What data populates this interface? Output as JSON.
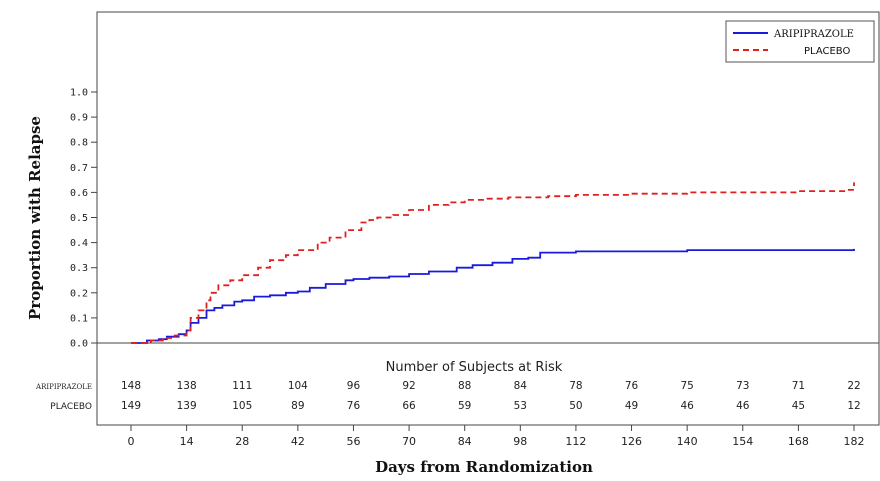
{
  "chart_data": {
    "type": "line",
    "title": "",
    "xlabel": "Days from Randomization",
    "ylabel": "Proportion with Relapse",
    "xlim": [
      -20,
      190
    ],
    "ylim": [
      0,
      1.0
    ],
    "x_ticks": [
      0,
      14,
      28,
      42,
      56,
      70,
      84,
      98,
      112,
      126,
      140,
      154,
      168,
      182
    ],
    "y_ticks": [
      "0.0",
      "0.1",
      "0.2",
      "0.3",
      "0.4",
      "0.5",
      "0.6",
      "0.7",
      "0.8",
      "0.9",
      "1.0"
    ],
    "legend_position": "top-right",
    "grid": false,
    "series": [
      {
        "name": "ARIPIPRAZOLE",
        "color": "#1a1adb",
        "line_style": "solid",
        "x": [
          0,
          4,
          7,
          9,
          12,
          14,
          15,
          17,
          19,
          21,
          23,
          26,
          28,
          31,
          35,
          39,
          42,
          45,
          49,
          54,
          56,
          60,
          65,
          70,
          75,
          82,
          86,
          91,
          96,
          100,
          103,
          112,
          140,
          182
        ],
        "y": [
          0,
          0.01,
          0.015,
          0.025,
          0.035,
          0.05,
          0.08,
          0.1,
          0.13,
          0.14,
          0.15,
          0.165,
          0.17,
          0.185,
          0.19,
          0.2,
          0.205,
          0.22,
          0.235,
          0.25,
          0.255,
          0.26,
          0.265,
          0.275,
          0.285,
          0.3,
          0.31,
          0.32,
          0.335,
          0.34,
          0.36,
          0.365,
          0.37,
          0.375
        ]
      },
      {
        "name": "PLACEBO",
        "color": "#e0201e",
        "line_style": "dashed",
        "x": [
          0,
          5,
          8,
          11,
          14,
          15,
          17,
          19,
          20,
          22,
          25,
          28,
          32,
          35,
          39,
          42,
          47,
          50,
          54,
          58,
          60,
          62,
          66,
          70,
          75,
          80,
          84,
          89,
          95,
          105,
          112,
          126,
          140,
          154,
          168,
          180,
          182
        ],
        "y": [
          0,
          0.01,
          0.02,
          0.03,
          0.05,
          0.1,
          0.13,
          0.17,
          0.2,
          0.23,
          0.25,
          0.27,
          0.3,
          0.33,
          0.35,
          0.37,
          0.4,
          0.42,
          0.45,
          0.48,
          0.49,
          0.5,
          0.51,
          0.53,
          0.55,
          0.56,
          0.57,
          0.575,
          0.58,
          0.585,
          0.59,
          0.595,
          0.6,
          0.6,
          0.605,
          0.61,
          0.64
        ]
      }
    ],
    "risk_table": {
      "title": "Number of Subjects at Risk",
      "rows": [
        {
          "label": "ARIPIPRAZOLE",
          "values": [
            "148",
            "138",
            "111",
            "104",
            "96",
            "92",
            "88",
            "84",
            "78",
            "76",
            "75",
            "73",
            "71",
            "22"
          ]
        },
        {
          "label": "PLACEBO",
          "values": [
            "149",
            "139",
            "105",
            "89",
            "76",
            "66",
            "59",
            "53",
            "50",
            "49",
            "46",
            "46",
            "45",
            "12"
          ]
        }
      ]
    }
  }
}
